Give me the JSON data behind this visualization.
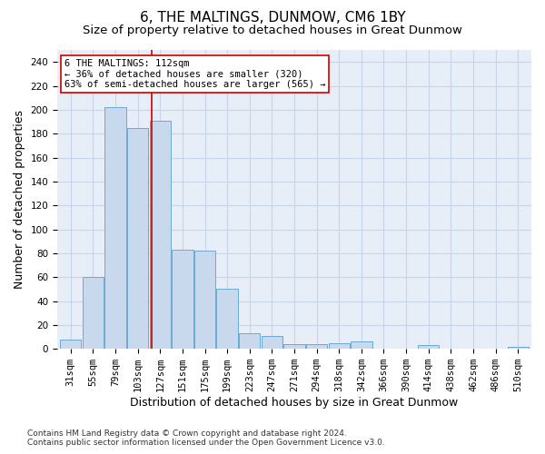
{
  "title": "6, THE MALTINGS, DUNMOW, CM6 1BY",
  "subtitle": "Size of property relative to detached houses in Great Dunmow",
  "xlabel": "Distribution of detached houses by size in Great Dunmow",
  "ylabel": "Number of detached properties",
  "bar_labels": [
    "31sqm",
    "55sqm",
    "79sqm",
    "103sqm",
    "127sqm",
    "151sqm",
    "175sqm",
    "199sqm",
    "223sqm",
    "247sqm",
    "271sqm",
    "294sqm",
    "318sqm",
    "342sqm",
    "366sqm",
    "390sqm",
    "414sqm",
    "438sqm",
    "462sqm",
    "486sqm",
    "510sqm"
  ],
  "bar_heights": [
    8,
    60,
    202,
    185,
    191,
    83,
    82,
    50,
    13,
    11,
    4,
    4,
    5,
    6,
    0,
    0,
    3,
    0,
    0,
    0,
    2
  ],
  "bar_color": "#c8d9ee",
  "bar_edge_color": "#6aaad4",
  "vline_x": 3.62,
  "vline_color": "#cc0000",
  "annotation_text": "6 THE MALTINGS: 112sqm\n← 36% of detached houses are smaller (320)\n63% of semi-detached houses are larger (565) →",
  "annotation_box_color": "#ffffff",
  "annotation_box_edge": "#cc0000",
  "ylim": [
    0,
    250
  ],
  "yticks": [
    0,
    20,
    40,
    60,
    80,
    100,
    120,
    140,
    160,
    180,
    200,
    220,
    240
  ],
  "footer_line1": "Contains HM Land Registry data © Crown copyright and database right 2024.",
  "footer_line2": "Contains public sector information licensed under the Open Government Licence v3.0.",
  "title_fontsize": 11,
  "subtitle_fontsize": 9.5,
  "axis_label_fontsize": 9,
  "tick_fontsize": 7.5,
  "annotation_fontsize": 7.5,
  "footer_fontsize": 6.5,
  "grid_color": "#c8d4e8",
  "background_color": "#e8eef8"
}
